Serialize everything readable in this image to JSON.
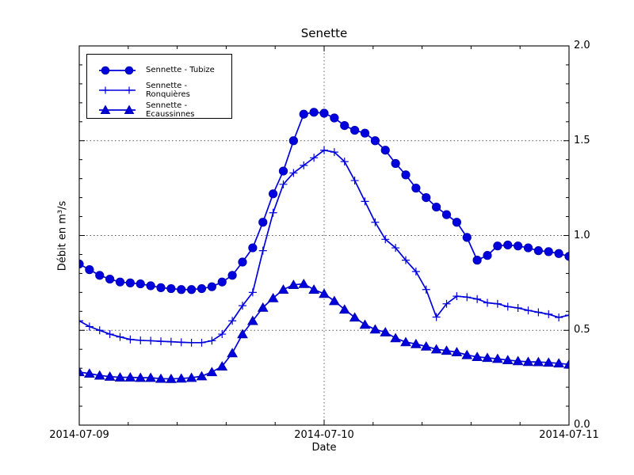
{
  "chart_data": {
    "type": "line",
    "title": "Senette",
    "xlabel": "Date",
    "ylabel": "Débit en m³/s",
    "ylim": [
      0.0,
      2.0
    ],
    "xlim_hours": [
      0,
      48
    ],
    "x_tick_hours": [
      0,
      24,
      48
    ],
    "x_tick_labels": [
      "2014-07-09",
      "2014-07-10",
      "2014-07-11"
    ],
    "y_ticks": [
      0.0,
      0.5,
      1.0,
      1.5,
      2.0
    ],
    "y_tick_labels": [
      "0.0",
      "0.5",
      "1.0",
      "1.5",
      "2.0"
    ],
    "x_minor_step_hours": 4.8,
    "y_minor_step": 0.1,
    "grid": {
      "style": "dotted",
      "x_hours": [
        24
      ],
      "y_values": [
        0.5,
        1.0,
        1.5
      ]
    },
    "legend_position": "upper-left",
    "line_color": "#0000dd",
    "grid_color": "#555555",
    "x_hours": [
      0,
      1,
      2,
      3,
      4,
      5,
      6,
      7,
      8,
      9,
      10,
      11,
      12,
      13,
      14,
      15,
      16,
      17,
      18,
      19,
      20,
      21,
      22,
      23,
      24,
      25,
      26,
      27,
      28,
      29,
      30,
      31,
      32,
      33,
      34,
      35,
      36,
      37,
      38,
      39,
      40,
      41,
      42,
      43,
      44,
      45,
      46,
      47,
      48
    ],
    "series": [
      {
        "name": "Sennette - Tubize",
        "marker": "circle",
        "color": "#0000dd",
        "values": [
          0.85,
          0.82,
          0.79,
          0.77,
          0.755,
          0.75,
          0.745,
          0.735,
          0.725,
          0.72,
          0.715,
          0.715,
          0.72,
          0.73,
          0.755,
          0.79,
          0.86,
          0.935,
          1.07,
          1.22,
          1.34,
          1.5,
          1.64,
          1.65,
          1.645,
          1.62,
          1.58,
          1.555,
          1.54,
          1.5,
          1.45,
          1.38,
          1.32,
          1.25,
          1.2,
          1.15,
          1.11,
          1.07,
          0.99,
          0.87,
          0.895,
          0.945,
          0.95,
          0.945,
          0.935,
          0.92,
          0.915,
          0.905,
          0.89
        ]
      },
      {
        "name": "Sennette - Ronquières",
        "marker": "plus",
        "color": "#0000dd",
        "values": [
          0.55,
          0.52,
          0.5,
          0.48,
          0.465,
          0.452,
          0.447,
          0.445,
          0.442,
          0.44,
          0.437,
          0.435,
          0.435,
          0.445,
          0.48,
          0.55,
          0.63,
          0.7,
          0.92,
          1.12,
          1.27,
          1.33,
          1.37,
          1.41,
          1.45,
          1.44,
          1.39,
          1.29,
          1.18,
          1.07,
          0.98,
          0.935,
          0.87,
          0.81,
          0.715,
          0.57,
          0.64,
          0.68,
          0.675,
          0.665,
          0.645,
          0.64,
          0.625,
          0.618,
          0.605,
          0.595,
          0.585,
          0.568,
          0.58
        ]
      },
      {
        "name": "Sennette - Ecaussinnes",
        "marker": "triangle",
        "color": "#0000dd",
        "values": [
          0.28,
          0.272,
          0.262,
          0.256,
          0.252,
          0.252,
          0.25,
          0.25,
          0.245,
          0.244,
          0.246,
          0.25,
          0.258,
          0.28,
          0.31,
          0.38,
          0.48,
          0.55,
          0.62,
          0.67,
          0.715,
          0.74,
          0.745,
          0.715,
          0.693,
          0.655,
          0.61,
          0.568,
          0.53,
          0.505,
          0.49,
          0.459,
          0.438,
          0.428,
          0.415,
          0.4,
          0.393,
          0.385,
          0.37,
          0.36,
          0.355,
          0.35,
          0.343,
          0.338,
          0.334,
          0.333,
          0.33,
          0.326,
          0.32
        ]
      }
    ]
  }
}
